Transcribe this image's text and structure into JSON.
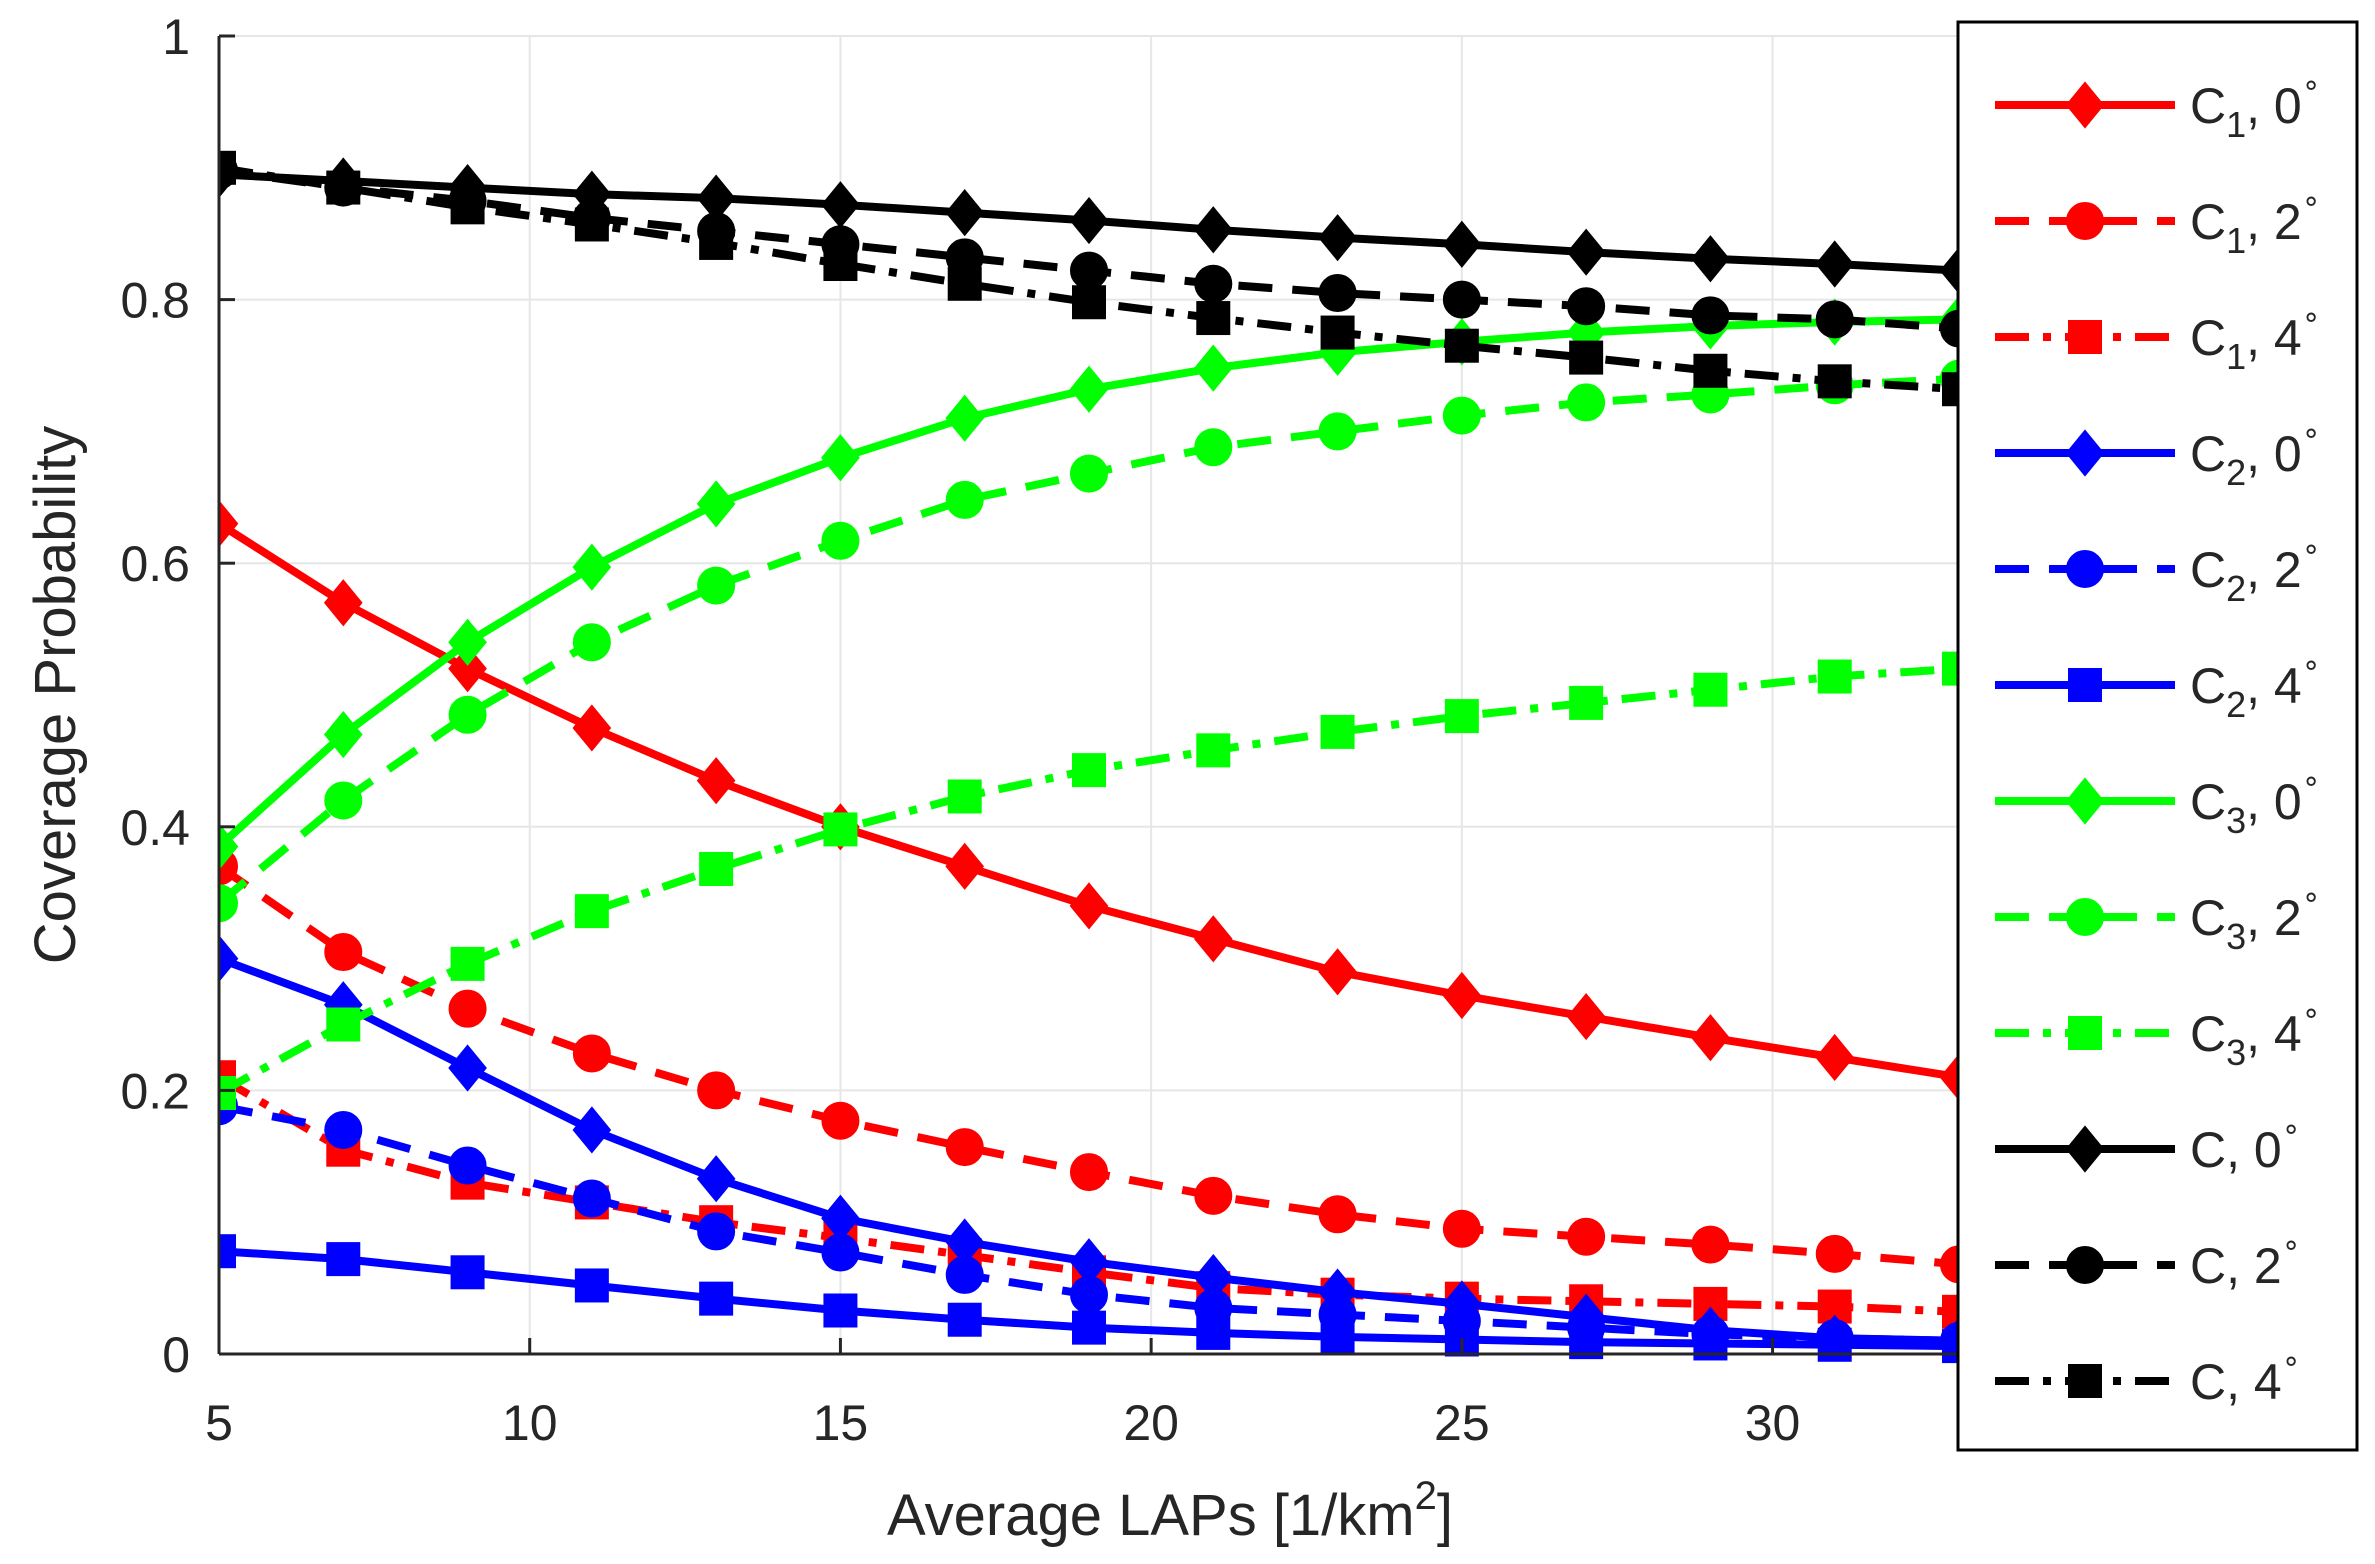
{
  "chart_data": {
    "type": "line",
    "xlabel_main": "Average LAPs [1/km",
    "xlabel_sup": "2",
    "xlabel_tail": "]",
    "ylabel": "Coverage Probability",
    "xlim": [
      5,
      33
    ],
    "ylim": [
      0,
      1
    ],
    "xticks": [
      5,
      10,
      15,
      20,
      25,
      30
    ],
    "yticks": [
      0,
      0.2,
      0.4,
      0.6,
      0.8,
      1
    ],
    "ytick_labels": [
      "0",
      "0.2",
      "0.4",
      "0.6",
      "0.8",
      "1"
    ],
    "grid": true,
    "legend_position": "right, outside the plot area",
    "x": [
      5,
      7,
      9,
      11,
      13,
      15,
      17,
      19,
      21,
      23,
      25,
      27,
      29,
      31,
      33
    ],
    "series": [
      {
        "label": {
          "base": "C",
          "sub": "1",
          "suffix": ", 0",
          "sup": "∘"
        },
        "color": "#ff0000",
        "dash": "solid",
        "marker": "diamond",
        "values": [
          0.63,
          0.57,
          0.52,
          0.475,
          0.435,
          0.4,
          0.37,
          0.34,
          0.315,
          0.29,
          0.272,
          0.256,
          0.24,
          0.225,
          0.21
        ]
      },
      {
        "label": {
          "base": "C",
          "sub": "1",
          "suffix": ", 2",
          "sup": "∘"
        },
        "color": "#ff0000",
        "dash": "dashed",
        "marker": "circle",
        "values": [
          0.37,
          0.305,
          0.262,
          0.228,
          0.2,
          0.177,
          0.157,
          0.138,
          0.12,
          0.106,
          0.095,
          0.089,
          0.083,
          0.076,
          0.068
        ]
      },
      {
        "label": {
          "base": "C",
          "sub": "1",
          "suffix": ", 4",
          "sup": "∘"
        },
        "color": "#ff0000",
        "dash": "dashdot",
        "marker": "square",
        "values": [
          0.21,
          0.155,
          0.13,
          0.115,
          0.1,
          0.088,
          0.075,
          0.062,
          0.05,
          0.045,
          0.042,
          0.04,
          0.038,
          0.036,
          0.032
        ]
      },
      {
        "label": {
          "base": "C",
          "sub": "2",
          "suffix": ", 0",
          "sup": "∘"
        },
        "color": "#0000ff",
        "dash": "solid",
        "marker": "diamond",
        "values": [
          0.3,
          0.265,
          0.217,
          0.17,
          0.133,
          0.103,
          0.085,
          0.07,
          0.058,
          0.047,
          0.038,
          0.028,
          0.018,
          0.012,
          0.01
        ]
      },
      {
        "label": {
          "base": "C",
          "sub": "2",
          "suffix": ", 2",
          "sup": "∘"
        },
        "color": "#0000ff",
        "dash": "dashed",
        "marker": "circle",
        "values": [
          0.188,
          0.17,
          0.143,
          0.118,
          0.093,
          0.077,
          0.06,
          0.045,
          0.035,
          0.03,
          0.025,
          0.02,
          0.015,
          0.012,
          0.01
        ]
      },
      {
        "label": {
          "base": "C",
          "sub": "2",
          "suffix": ", 4",
          "sup": "∘"
        },
        "color": "#0000ff",
        "dash": "solid",
        "marker": "square",
        "values": [
          0.078,
          0.072,
          0.062,
          0.052,
          0.042,
          0.033,
          0.026,
          0.02,
          0.016,
          0.013,
          0.011,
          0.009,
          0.008,
          0.007,
          0.006
        ]
      },
      {
        "label": {
          "base": "C",
          "sub": "3",
          "suffix": ", 0",
          "sup": "∘"
        },
        "color": "#00ff00",
        "dash": "solid",
        "marker": "diamond",
        "values": [
          0.385,
          0.47,
          0.54,
          0.597,
          0.645,
          0.68,
          0.71,
          0.732,
          0.748,
          0.76,
          0.768,
          0.775,
          0.78,
          0.783,
          0.785
        ]
      },
      {
        "label": {
          "base": "C",
          "sub": "3",
          "suffix": ", 2",
          "sup": "∘"
        },
        "color": "#00ff00",
        "dash": "dashed",
        "marker": "circle",
        "values": [
          0.342,
          0.42,
          0.485,
          0.54,
          0.583,
          0.617,
          0.648,
          0.668,
          0.688,
          0.7,
          0.712,
          0.722,
          0.728,
          0.735,
          0.74
        ]
      },
      {
        "label": {
          "base": "C",
          "sub": "3",
          "suffix": ", 4",
          "sup": "∘"
        },
        "color": "#00ff00",
        "dash": "dashdot",
        "marker": "square",
        "values": [
          0.198,
          0.25,
          0.296,
          0.336,
          0.368,
          0.398,
          0.423,
          0.443,
          0.458,
          0.472,
          0.484,
          0.494,
          0.504,
          0.514,
          0.52
        ]
      },
      {
        "label": {
          "base": "C",
          "sub": "",
          "suffix": ", 0",
          "sup": "∘"
        },
        "color": "#000000",
        "dash": "solid",
        "marker": "diamond",
        "values": [
          0.895,
          0.89,
          0.885,
          0.88,
          0.877,
          0.872,
          0.866,
          0.86,
          0.853,
          0.847,
          0.842,
          0.836,
          0.831,
          0.827,
          0.822
        ]
      },
      {
        "label": {
          "base": "C",
          "sub": "",
          "suffix": ", 2",
          "sup": "∘"
        },
        "color": "#000000",
        "dash": "dashed",
        "marker": "circle",
        "values": [
          0.898,
          0.885,
          0.875,
          0.862,
          0.852,
          0.842,
          0.832,
          0.822,
          0.812,
          0.805,
          0.8,
          0.795,
          0.788,
          0.785,
          0.778
        ]
      },
      {
        "label": {
          "base": "C",
          "sub": "",
          "suffix": ", 4",
          "sup": "∘"
        },
        "color": "#000000",
        "dash": "dashdot",
        "marker": "square",
        "values": [
          0.9,
          0.885,
          0.87,
          0.857,
          0.843,
          0.827,
          0.812,
          0.798,
          0.786,
          0.775,
          0.765,
          0.756,
          0.746,
          0.738,
          0.732
        ]
      }
    ]
  }
}
